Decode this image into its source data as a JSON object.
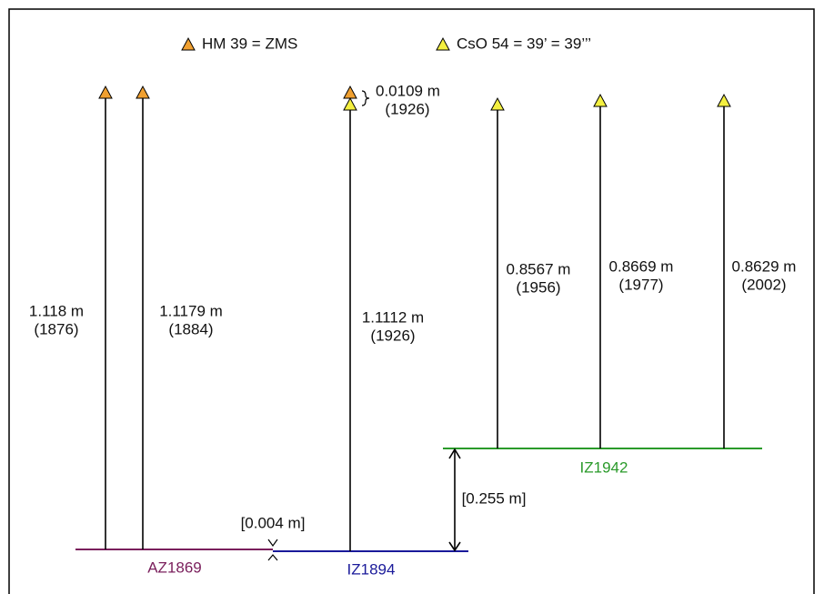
{
  "legend": [
    {
      "label": "HM 39 = ZMS"
    },
    {
      "label": "CsO 54 = 39’ = 39’’’"
    }
  ],
  "datums": [
    "AZ1869",
    "IZ1894",
    "IZ1942"
  ],
  "measurements": [
    {
      "length": "1.118 m",
      "year": "(1876)"
    },
    {
      "length": "1.1179 m",
      "year": "(1884)"
    },
    {
      "length": "1.1112 m",
      "year": "(1926)"
    },
    {
      "length": "0.8567 m",
      "year": "(1956)"
    },
    {
      "length": "0.8669 m",
      "year": "(1977)"
    },
    {
      "length": "0.8629 m",
      "year": "(2002)"
    }
  ],
  "marker_difference": {
    "length": "0.0109 m",
    "year": "(1926)"
  },
  "offsets": [
    "[0.004 m]",
    "[0.255 m]"
  ]
}
